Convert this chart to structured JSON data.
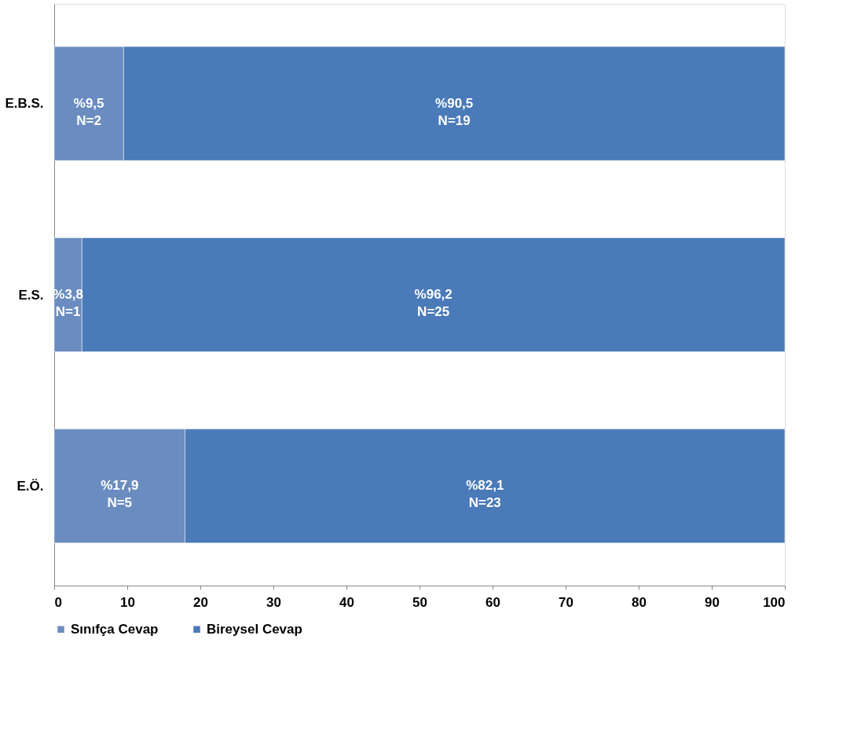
{
  "chart_data": {
    "type": "bar",
    "orientation": "horizontal",
    "stacked": true,
    "categories": [
      "E.B.S.",
      "E.S.",
      "E.Ö."
    ],
    "series": [
      {
        "name": "Sınıfça Cevap",
        "color": "#6a8cc0",
        "values": [
          9.5,
          3.8,
          17.9
        ],
        "value_labels": [
          "%9,5\nN=2",
          "%3,8\nN=1",
          "%17,9\nN=5"
        ]
      },
      {
        "name": "Bireysel Cevap",
        "color": "#4a7ab8",
        "values": [
          90.5,
          96.2,
          82.1
        ],
        "value_labels": [
          "%90,5\nN=19",
          "%96,2\nN=25",
          "%82,1\nN=23"
        ]
      }
    ],
    "xlim": [
      0,
      100
    ],
    "xticks": [
      0,
      10,
      20,
      30,
      40,
      50,
      60,
      70,
      80,
      90,
      100
    ],
    "grid": false,
    "legend": "bottom"
  }
}
